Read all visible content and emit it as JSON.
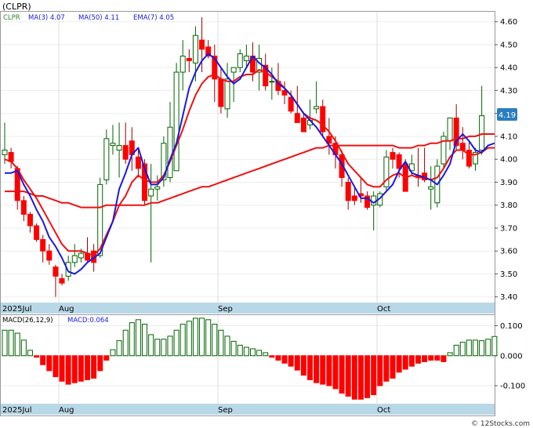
{
  "title": "(CLPR)",
  "copyright": "© 12Stocks.com",
  "legend": {
    "ticker": "CLPR",
    "ma3": "MA(3)  4.07",
    "ma50": "MA(50)  4.11",
    "ema7": "EMA(7)  4.05"
  },
  "macd_legend": {
    "params": "MACD(26,12,9)",
    "value": "MACD:0.064"
  },
  "current_price": "4.19",
  "x_labels": [
    "2025Jul",
    "Aug",
    "Sep",
    "Oct"
  ],
  "colors": {
    "up": "#006400",
    "down": "#ff0000",
    "ma_blue": "#1a1add",
    "ma_red": "#ee1111",
    "axis_band": "#b8d8e8",
    "badge": "#2a7dbe"
  },
  "chart_data": [
    {
      "type": "candlestick",
      "name": "price",
      "y_ticks": [
        "3.40",
        "3.50",
        "3.60",
        "3.70",
        "3.80",
        "3.90",
        "4.00",
        "4.10",
        "4.20",
        "4.30",
        "4.40",
        "4.50",
        "4.60"
      ],
      "y_range": [
        3.375,
        4.64
      ],
      "candles": [
        [
          4.02,
          4.16,
          3.98,
          4.04
        ],
        [
          4.03,
          4.05,
          3.96,
          3.99
        ],
        [
          3.96,
          3.97,
          3.78,
          3.82
        ],
        [
          3.82,
          3.84,
          3.73,
          3.76
        ],
        [
          3.76,
          3.77,
          3.68,
          3.71
        ],
        [
          3.71,
          3.72,
          3.64,
          3.65
        ],
        [
          3.65,
          3.67,
          3.55,
          3.6
        ],
        [
          3.6,
          3.63,
          3.54,
          3.56
        ],
        [
          3.53,
          3.54,
          3.4,
          3.49
        ],
        [
          3.48,
          3.5,
          3.45,
          3.46
        ],
        [
          3.49,
          3.58,
          3.47,
          3.55
        ],
        [
          3.55,
          3.63,
          3.53,
          3.58
        ],
        [
          3.57,
          3.61,
          3.55,
          3.59
        ],
        [
          3.59,
          3.66,
          3.55,
          3.56
        ],
        [
          3.6,
          3.63,
          3.51,
          3.55
        ],
        [
          3.58,
          3.92,
          3.57,
          3.89
        ],
        [
          3.91,
          4.13,
          3.89,
          4.09
        ],
        [
          4.06,
          4.15,
          4.02,
          4.07
        ],
        [
          4.04,
          4.16,
          3.92,
          4.06
        ],
        [
          4.06,
          4.16,
          3.98,
          4.0
        ],
        [
          4.08,
          4.14,
          3.95,
          4.02
        ],
        [
          4.01,
          4.04,
          3.92,
          3.96
        ],
        [
          3.98,
          4.0,
          3.8,
          3.82
        ],
        [
          3.84,
          3.98,
          3.55,
          3.87
        ],
        [
          3.87,
          3.93,
          3.82,
          3.88
        ],
        [
          3.91,
          4.1,
          3.88,
          4.07
        ],
        [
          3.92,
          4.25,
          3.9,
          4.14
        ],
        [
          3.95,
          4.42,
          3.95,
          4.38
        ],
        [
          4.38,
          4.52,
          4.3,
          4.45
        ],
        [
          4.44,
          4.48,
          4.38,
          4.43
        ],
        [
          4.42,
          4.58,
          4.34,
          4.54
        ],
        [
          4.52,
          4.62,
          4.38,
          4.48
        ],
        [
          4.49,
          4.52,
          4.44,
          4.45
        ],
        [
          4.45,
          4.5,
          4.25,
          4.35
        ],
        [
          4.35,
          4.4,
          4.2,
          4.23
        ],
        [
          4.22,
          4.42,
          4.18,
          4.35
        ],
        [
          4.38,
          4.4,
          4.25,
          4.4
        ],
        [
          4.4,
          4.48,
          4.38,
          4.46
        ],
        [
          4.43,
          4.5,
          4.4,
          4.45
        ],
        [
          4.45,
          4.51,
          4.34,
          4.38
        ],
        [
          4.38,
          4.5,
          4.3,
          4.44
        ],
        [
          4.41,
          4.46,
          4.3,
          4.32
        ],
        [
          4.34,
          4.4,
          4.26,
          4.34
        ],
        [
          4.34,
          4.42,
          4.28,
          4.3
        ],
        [
          4.3,
          4.34,
          4.24,
          4.28
        ],
        [
          4.27,
          4.3,
          4.2,
          4.21
        ],
        [
          4.2,
          4.32,
          4.16,
          4.16
        ],
        [
          4.18,
          4.2,
          4.12,
          4.12
        ],
        [
          4.15,
          4.26,
          4.13,
          4.17
        ],
        [
          4.22,
          4.34,
          4.2,
          4.23
        ],
        [
          4.23,
          4.26,
          4.1,
          4.12
        ],
        [
          4.1,
          4.18,
          4.02,
          4.07
        ],
        [
          4.07,
          4.1,
          3.96,
          4.02
        ],
        [
          4.02,
          4.04,
          3.88,
          3.92
        ],
        [
          3.9,
          3.92,
          3.78,
          3.82
        ],
        [
          3.84,
          3.88,
          3.8,
          3.82
        ],
        [
          3.85,
          3.92,
          3.81,
          3.84
        ],
        [
          3.84,
          3.86,
          3.78,
          3.79
        ],
        [
          3.8,
          3.86,
          3.69,
          3.84
        ],
        [
          3.8,
          3.86,
          3.79,
          3.85
        ],
        [
          3.88,
          4.04,
          3.86,
          4.01
        ],
        [
          4.03,
          4.05,
          3.96,
          4.0
        ],
        [
          4.02,
          4.03,
          3.92,
          3.96
        ],
        [
          3.98,
          4.0,
          3.86,
          3.86
        ],
        [
          3.95,
          4.02,
          3.93,
          3.98
        ],
        [
          3.93,
          4.05,
          3.88,
          3.92
        ],
        [
          3.94,
          4.05,
          3.9,
          3.91
        ],
        [
          3.87,
          3.97,
          3.78,
          3.88
        ],
        [
          3.81,
          4.0,
          3.79,
          3.97
        ],
        [
          3.98,
          4.12,
          3.96,
          4.1
        ],
        [
          4.08,
          4.18,
          4.04,
          4.18
        ],
        [
          4.18,
          4.24,
          4.04,
          4.06
        ],
        [
          4.07,
          4.14,
          4.0,
          4.04
        ],
        [
          4.04,
          4.08,
          3.96,
          3.97
        ],
        [
          3.98,
          4.05,
          3.95,
          4.03
        ],
        [
          4.04,
          4.32,
          4.02,
          4.19
        ]
      ],
      "ma3": [
        3.94,
        3.94,
        3.95,
        3.89,
        3.84,
        3.78,
        3.73,
        3.66,
        3.62,
        3.57,
        3.51,
        3.5,
        3.52,
        3.55,
        3.57,
        3.59,
        3.66,
        3.73,
        3.87,
        3.94,
        4.02,
        4.05,
        3.96,
        3.89,
        3.89,
        3.92,
        4.0,
        4.07,
        4.19,
        4.31,
        4.38,
        4.43,
        4.46,
        4.44,
        4.4,
        4.36,
        4.33,
        4.35,
        4.4,
        4.45,
        4.42,
        4.4,
        4.37,
        4.33,
        4.31,
        4.28,
        4.24,
        4.2,
        4.17,
        4.14,
        4.1,
        4.06,
        4.02,
        3.98,
        3.93,
        3.88,
        3.83,
        3.83,
        3.81,
        3.83,
        3.86,
        3.89,
        3.95,
        3.99,
        3.94,
        3.93,
        3.92,
        3.91,
        3.89,
        3.93,
        3.98,
        4.08,
        4.11,
        4.08,
        4.04,
        4.03,
        4.06,
        4.07
      ],
      "ma50": [
        3.86,
        3.86,
        3.86,
        3.86,
        3.85,
        3.84,
        3.84,
        3.83,
        3.82,
        3.81,
        3.81,
        3.8,
        3.79,
        3.79,
        3.79,
        3.79,
        3.8,
        3.8,
        3.8,
        3.8,
        3.8,
        3.8,
        3.8,
        3.81,
        3.81,
        3.82,
        3.83,
        3.84,
        3.85,
        3.86,
        3.87,
        3.88,
        3.88,
        3.89,
        3.9,
        3.91,
        3.92,
        3.93,
        3.94,
        3.95,
        3.96,
        3.97,
        3.98,
        3.99,
        4.0,
        4.01,
        4.02,
        4.03,
        4.04,
        4.05,
        4.05,
        4.06,
        4.06,
        4.06,
        4.06,
        4.06,
        4.06,
        4.06,
        4.06,
        4.06,
        4.06,
        4.06,
        4.05,
        4.05,
        4.05,
        4.06,
        4.06,
        4.07,
        4.07,
        4.08,
        4.08,
        4.09,
        4.09,
        4.1,
        4.1,
        4.11,
        4.11,
        4.11
      ],
      "ema7": [
        4.0,
        3.99,
        3.96,
        3.91,
        3.87,
        3.83,
        3.78,
        3.73,
        3.68,
        3.63,
        3.6,
        3.6,
        3.6,
        3.59,
        3.58,
        3.61,
        3.67,
        3.73,
        3.8,
        3.84,
        3.9,
        3.93,
        3.91,
        3.9,
        3.9,
        3.93,
        3.99,
        4.06,
        4.13,
        4.21,
        4.28,
        4.33,
        4.36,
        4.37,
        4.35,
        4.34,
        4.34,
        4.36,
        4.37,
        4.37,
        4.39,
        4.38,
        4.36,
        4.34,
        4.31,
        4.28,
        4.24,
        4.2,
        4.18,
        4.17,
        4.15,
        4.12,
        4.08,
        4.03,
        3.98,
        3.95,
        3.92,
        3.89,
        3.88,
        3.88,
        3.91,
        3.93,
        3.94,
        3.92,
        3.93,
        3.92,
        3.92,
        3.91,
        3.92,
        3.96,
        4.01,
        4.04,
        4.04,
        4.02,
        4.02,
        4.03,
        4.05,
        4.05
      ]
    },
    {
      "type": "bar",
      "name": "MACD(26,12,9)",
      "y_ticks": [
        "0.100",
        "0.000",
        "-0.100"
      ],
      "y_range": [
        -0.16,
        0.13
      ],
      "values": [
        0.085,
        0.085,
        0.075,
        0.052,
        0.018,
        -0.005,
        -0.03,
        -0.05,
        -0.07,
        -0.085,
        -0.095,
        -0.09,
        -0.085,
        -0.08,
        -0.075,
        -0.05,
        -0.015,
        0.02,
        0.05,
        0.085,
        0.11,
        0.12,
        0.105,
        0.07,
        0.055,
        0.055,
        0.065,
        0.085,
        0.105,
        0.115,
        0.125,
        0.125,
        0.12,
        0.105,
        0.085,
        0.065,
        0.048,
        0.035,
        0.028,
        0.023,
        0.018,
        0.01,
        -0.005,
        -0.015,
        -0.025,
        -0.035,
        -0.048,
        -0.065,
        -0.08,
        -0.09,
        -0.095,
        -0.1,
        -0.11,
        -0.125,
        -0.135,
        -0.145,
        -0.145,
        -0.14,
        -0.13,
        -0.1,
        -0.085,
        -0.075,
        -0.055,
        -0.045,
        -0.035,
        -0.025,
        -0.02,
        -0.015,
        -0.015,
        -0.02,
        0.01,
        0.035,
        0.045,
        0.052,
        0.052,
        0.05,
        0.055,
        0.064
      ]
    }
  ]
}
